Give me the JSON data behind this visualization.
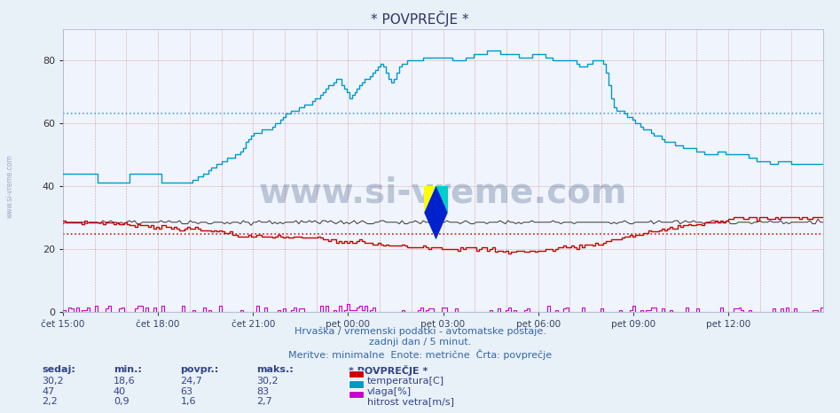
{
  "title": "* POVPREČJE *",
  "background_color": "#e8f0f8",
  "plot_bg_color": "#f0f4fc",
  "ylabel": "",
  "ylim": [
    0,
    90
  ],
  "yticks": [
    0,
    20,
    40,
    60,
    80
  ],
  "xlabel_ticks": [
    "čet 15:00",
    "čet 18:00",
    "čet 21:00",
    "pet 00:00",
    "pet 03:00",
    "pet 06:00",
    "pet 09:00",
    "pet 12:00"
  ],
  "temp_color": "#cc0000",
  "vlaga_color": "#0099cc",
  "wind_color": "#cc00cc",
  "tlak_color": "#333333",
  "temp_avg": 24.7,
  "vlaga_avg": 63,
  "wind_avg": 1.6,
  "temp_min": 18.6,
  "temp_max": 30.2,
  "vlaga_min": 40,
  "vlaga_max": 83,
  "vlaga_sedaj": 47,
  "wind_min": 0.9,
  "wind_max": 2.7,
  "subtitle1": "Hrvaška / vremenski podatki - avtomatske postaje.",
  "subtitle2": "zadnji dan / 5 minut.",
  "subtitle3": "Meritve: minimalne  Enote: metrične  Črta: povprečje",
  "legend_title": "* POVPREČJE *",
  "legend_items": [
    "temperatura[C]",
    "vlaga[%]",
    "hitrost vetra[m/s]"
  ],
  "col_headers": [
    "sedaj:",
    "min.:",
    "povpr.:",
    "maks.:"
  ],
  "temp_row": [
    "30,2",
    "18,6",
    "24,7",
    "30,2"
  ],
  "vlaga_row": [
    "47",
    "40",
    "63",
    "83"
  ],
  "wind_row": [
    "2,2",
    "0,9",
    "1,6",
    "2,7"
  ],
  "n_points": 288,
  "watermark_text": "www.si-vreme.com",
  "left_watermark": "www.si-vreme.com",
  "grid_color": "#cc4444",
  "grid_vcolor": "#cc4444",
  "ref_line_color_vlaga": "#4499cc",
  "ref_line_color_temp": "#cc0000"
}
